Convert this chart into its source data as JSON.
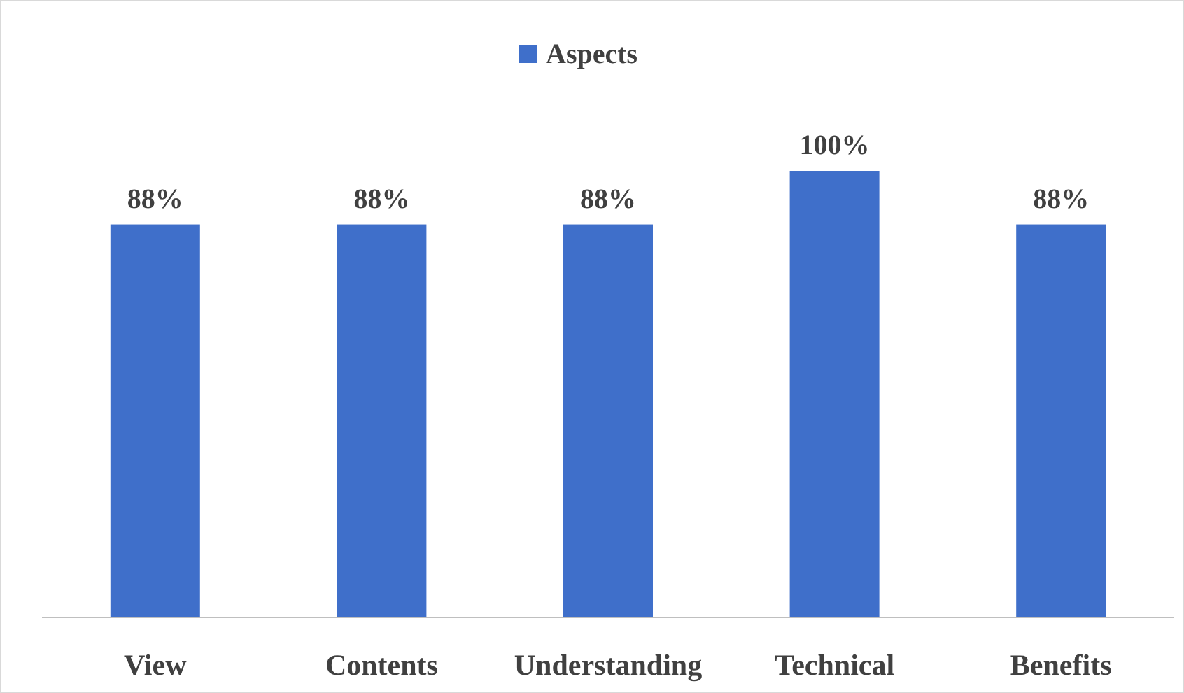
{
  "chart_data": {
    "type": "bar",
    "categories": [
      "View",
      "Contents",
      "Understanding",
      "Technical",
      "Benefits"
    ],
    "series": [
      {
        "name": "Aspects",
        "color": "#3f6fca",
        "values": [
          88,
          88,
          88,
          100,
          88
        ],
        "value_labels": [
          "88%",
          "88%",
          "88%",
          "100%",
          "88%"
        ]
      }
    ],
    "tick_labels": "x",
    "legend": "top"
  }
}
